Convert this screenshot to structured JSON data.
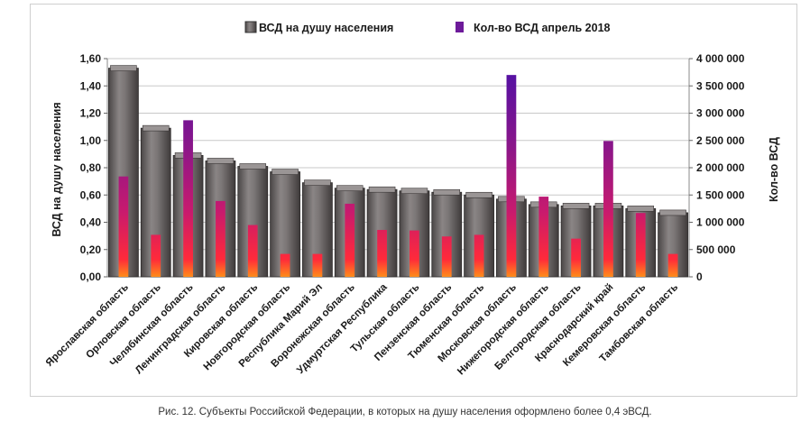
{
  "chart_data": {
    "type": "bar",
    "title": "",
    "legend": {
      "placement": "top",
      "series_a_label": "ВСД на душу населения",
      "series_b_label": "Кол-во ВСД апрель 2018"
    },
    "ylabel_left": "ВСД на душу населения",
    "ylabel_right": "Кол-во ВСД",
    "ylim_left": [
      0,
      1.6
    ],
    "ylim_right": [
      0,
      4000000
    ],
    "left_ticks": [
      0,
      0.2,
      0.4,
      0.6,
      0.8,
      1.0,
      1.2,
      1.4,
      1.6
    ],
    "left_tick_labels": [
      "0,00",
      "0,20",
      "0,40",
      "0,60",
      "0,80",
      "1,00",
      "1,20",
      "1,40",
      "1,60"
    ],
    "right_ticks": [
      0,
      500000,
      1000000,
      1500000,
      2000000,
      2500000,
      3000000,
      3500000,
      4000000
    ],
    "right_tick_labels": [
      "0",
      "500 000",
      "1 000 000",
      "1 500 000",
      "2 000 000",
      "2 500 000",
      "3 000 000",
      "3 500 000",
      "4 000 000"
    ],
    "categories": [
      "Ярославская область",
      "Орловская область",
      "Челябинская область",
      "Ленинградская область",
      "Кировская область",
      "Новгородская область",
      "Республика Марий Эл",
      "Воронежская область",
      "Удмуртская Республика",
      "Тульская область",
      "Пензенская область",
      "Тюменская область",
      "Московская область",
      "Нижегородская область",
      "Белгородская область",
      "Краснодарский край",
      "Кемеровская область",
      "Тамбовская область"
    ],
    "series": [
      {
        "name": "ВСД на душу населения",
        "axis": "left",
        "color": "#6e6a6a",
        "values": [
          1.53,
          1.09,
          0.89,
          0.85,
          0.81,
          0.77,
          0.69,
          0.65,
          0.64,
          0.63,
          0.62,
          0.6,
          0.57,
          0.53,
          0.52,
          0.52,
          0.5,
          0.47
        ]
      },
      {
        "name": "Кол-во ВСД апрель 2018",
        "axis": "right",
        "color": "#8b1a6b",
        "values": [
          1840000,
          770000,
          2870000,
          1390000,
          950000,
          420000,
          420000,
          1340000,
          860000,
          850000,
          740000,
          770000,
          3700000,
          1470000,
          700000,
          2490000,
          1170000,
          420000
        ]
      }
    ],
    "grid": true
  },
  "caption": "Рис. 12. Субъекты Российской Федерации, в которых на душу населения оформлено более 0,4 эВСД."
}
